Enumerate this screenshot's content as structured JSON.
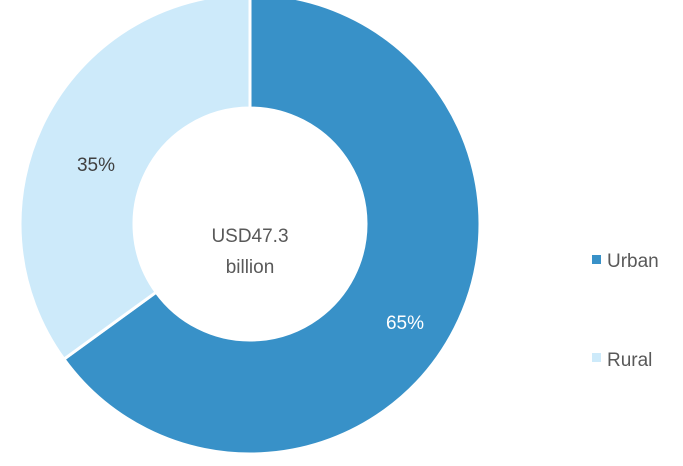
{
  "chart_data": {
    "type": "pie",
    "title": "",
    "center_label_lines": [
      "USD47.3",
      "billion"
    ],
    "slices": [
      {
        "name": "Urban",
        "value": 65,
        "label": "65%",
        "color": "#3891c8",
        "label_color": "#ffffff"
      },
      {
        "name": "Rural",
        "value": 35,
        "label": "35%",
        "color": "#cdeafa",
        "label_color": "#404040"
      }
    ],
    "legend": {
      "placement": "right",
      "items": [
        "Urban",
        "Rural"
      ]
    }
  }
}
